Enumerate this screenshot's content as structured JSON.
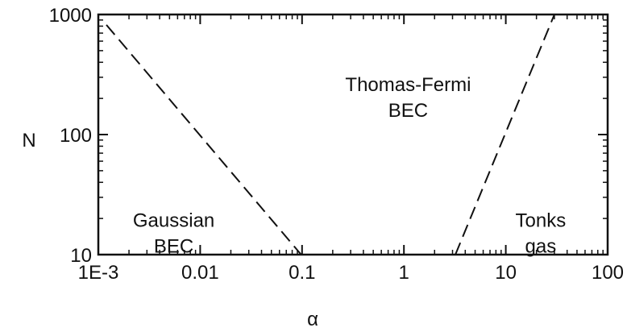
{
  "chart_data": {
    "type": "line",
    "title": "",
    "xlabel": "α",
    "ylabel": "N",
    "x_scale": "log",
    "y_scale": "log",
    "xlim": [
      0.001,
      100
    ],
    "ylim": [
      10,
      1000
    ],
    "x_ticks": [
      {
        "value": 0.001,
        "label": "1E-3"
      },
      {
        "value": 0.01,
        "label": "0.01"
      },
      {
        "value": 0.1,
        "label": "0.1"
      },
      {
        "value": 1,
        "label": "1"
      },
      {
        "value": 10,
        "label": "10"
      },
      {
        "value": 100,
        "label": "100"
      }
    ],
    "y_ticks": [
      {
        "value": 10,
        "label": "10"
      },
      {
        "value": 100,
        "label": "100"
      },
      {
        "value": 1000,
        "label": "1000"
      }
    ],
    "grid": false,
    "legend": "none",
    "series": [
      {
        "style": "dashed",
        "color": "#111111",
        "x": [
          0.0012,
          0.098
        ],
        "y": [
          820,
          10
        ]
      },
      {
        "style": "dashed",
        "color": "#111111",
        "x": [
          3.2,
          30
        ],
        "y": [
          10,
          1000
        ]
      }
    ],
    "annotations": [
      {
        "lines": [
          "Thomas-Fermi",
          "BEC"
        ],
        "x": 1.1,
        "y": 230
      },
      {
        "lines": [
          "Gaussian",
          "BEC"
        ],
        "x": 0.0055,
        "y": 17
      },
      {
        "lines": [
          "Tonks",
          "gas"
        ],
        "x": 22,
        "y": 17
      }
    ]
  }
}
